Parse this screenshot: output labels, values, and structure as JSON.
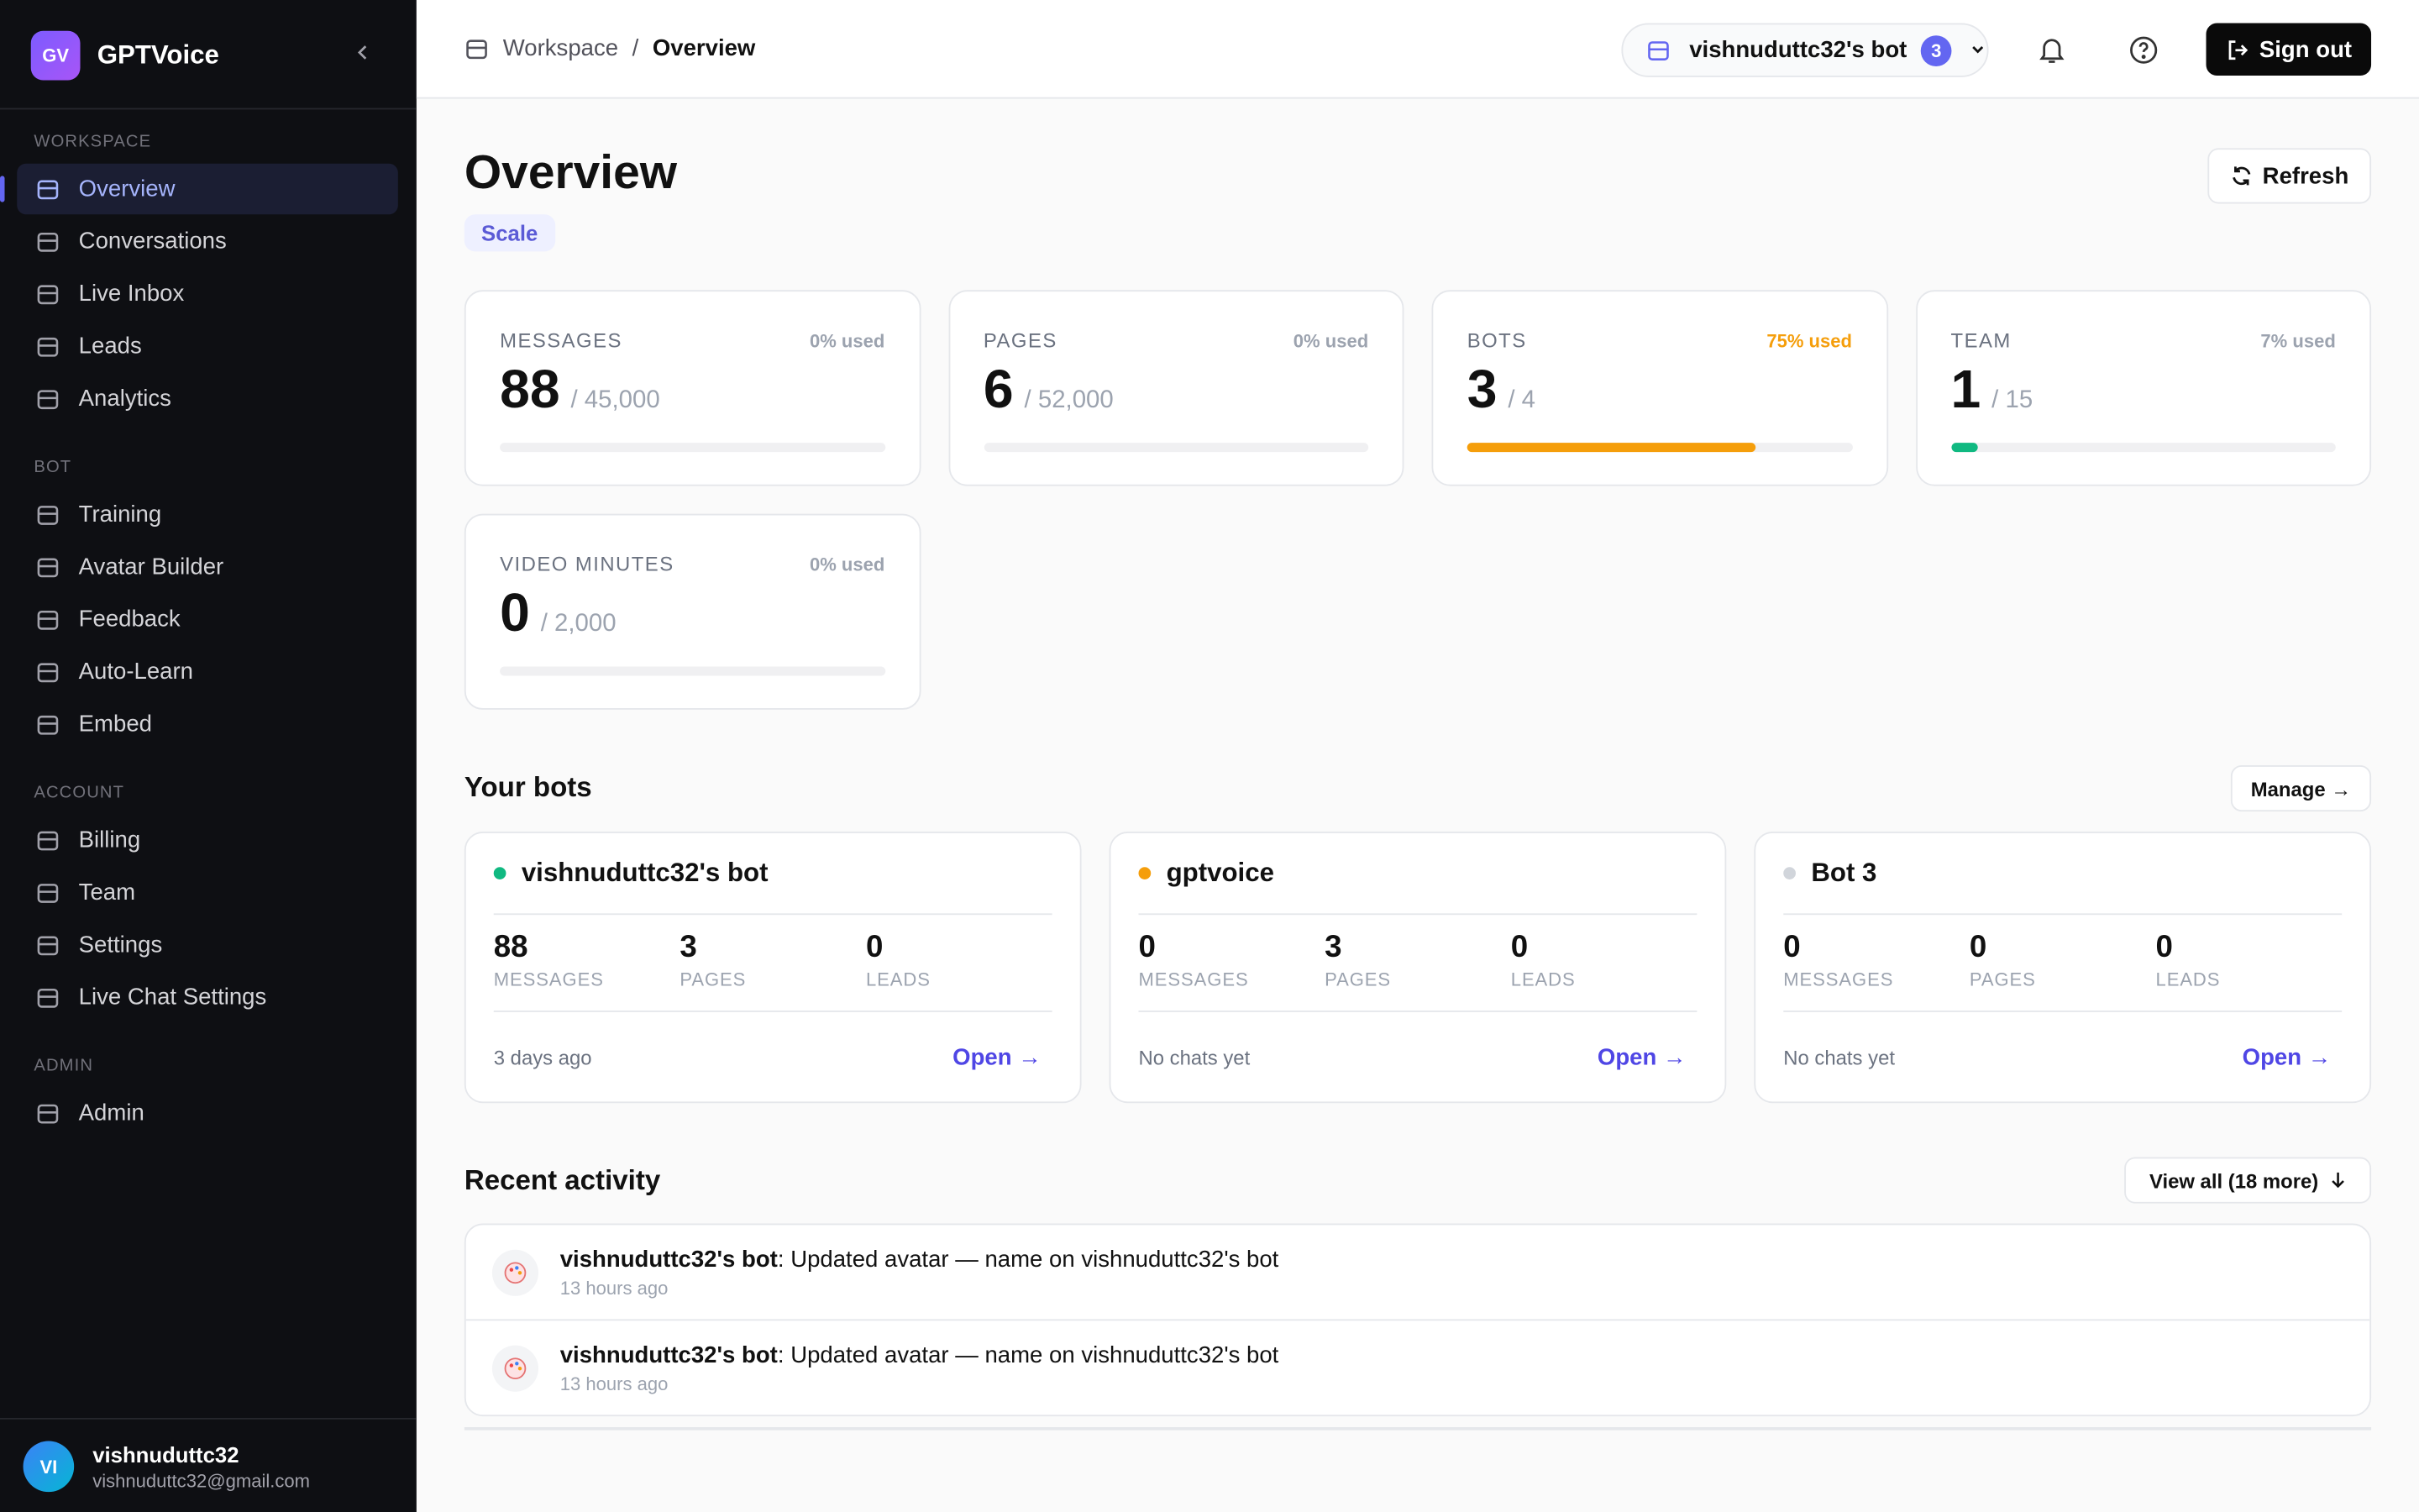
{
  "sidebar": {
    "logo": "GV",
    "brand": "GPTVoice",
    "sections": [
      {
        "title": "WORKSPACE",
        "items": [
          "Overview",
          "Conversations",
          "Live Inbox",
          "Leads",
          "Analytics"
        ]
      },
      {
        "title": "BOT",
        "items": [
          "Training",
          "Avatar Builder",
          "Feedback",
          "Auto-Learn",
          "Embed"
        ]
      },
      {
        "title": "ACCOUNT",
        "items": [
          "Billing",
          "Team",
          "Settings",
          "Live Chat Settings"
        ]
      },
      {
        "title": "ADMIN",
        "items": [
          "Admin"
        ]
      }
    ],
    "user": {
      "initials": "VI",
      "name": "vishnuduttc32",
      "email": "vishnuduttc32@gmail.com"
    }
  },
  "topbar": {
    "breadcrumb": [
      "Workspace",
      "/",
      "Overview"
    ],
    "bot_selector": "vishnuduttc32's bot",
    "bot_count": "3",
    "sign_out": "Sign out"
  },
  "header": {
    "title": "Overview",
    "plan": "Scale",
    "refresh": "Refresh"
  },
  "usage": [
    {
      "label": "MESSAGES",
      "used_label": "0% used",
      "used_pct": 0,
      "value": "88",
      "limit": "/ 45,000",
      "color": "#9ca3af"
    },
    {
      "label": "PAGES",
      "used_label": "0% used",
      "used_pct": 0,
      "value": "6",
      "limit": "/ 52,000",
      "color": "#9ca3af"
    },
    {
      "label": "BOTS",
      "used_label": "75% used",
      "used_pct": 75,
      "value": "3",
      "limit": "/ 4",
      "color": "#f59e0b"
    },
    {
      "label": "TEAM",
      "used_label": "7% used",
      "used_pct": 7,
      "value": "1",
      "limit": "/ 15",
      "color": "#10b981"
    },
    {
      "label": "VIDEO MINUTES",
      "used_label": "0% used",
      "used_pct": 0,
      "value": "0",
      "limit": "/ 2,000",
      "color": "#9ca3af"
    }
  ],
  "bots": {
    "title": "Your bots",
    "manage": "Manage →",
    "items": [
      {
        "name": "vishnuduttc32's bot",
        "status_color": "#10b981",
        "stats": [
          {
            "value": "88",
            "label": "MESSAGES"
          },
          {
            "value": "3",
            "label": "PAGES"
          },
          {
            "value": "0",
            "label": "LEADS"
          }
        ],
        "last": "3 days ago",
        "open": "Open →"
      },
      {
        "name": "gptvoice",
        "status_color": "#f59e0b",
        "stats": [
          {
            "value": "0",
            "label": "MESSAGES"
          },
          {
            "value": "3",
            "label": "PAGES"
          },
          {
            "value": "0",
            "label": "LEADS"
          }
        ],
        "last": "No chats yet",
        "open": "Open →"
      },
      {
        "name": "Bot 3",
        "status_color": "#d1d5db",
        "stats": [
          {
            "value": "0",
            "label": "MESSAGES"
          },
          {
            "value": "0",
            "label": "PAGES"
          },
          {
            "value": "0",
            "label": "LEADS"
          }
        ],
        "last": "No chats yet",
        "open": "Open →"
      }
    ]
  },
  "activity": {
    "title": "Recent activity",
    "view_all": "View all (18 more)",
    "items": [
      {
        "bot": "vishnuduttc32's bot",
        "text": ": Updated avatar — name on vishnuduttc32's bot",
        "time": "13 hours ago"
      },
      {
        "bot": "vishnuduttc32's bot",
        "text": ": Updated avatar — name on vishnuduttc32's bot",
        "time": "13 hours ago"
      }
    ]
  }
}
